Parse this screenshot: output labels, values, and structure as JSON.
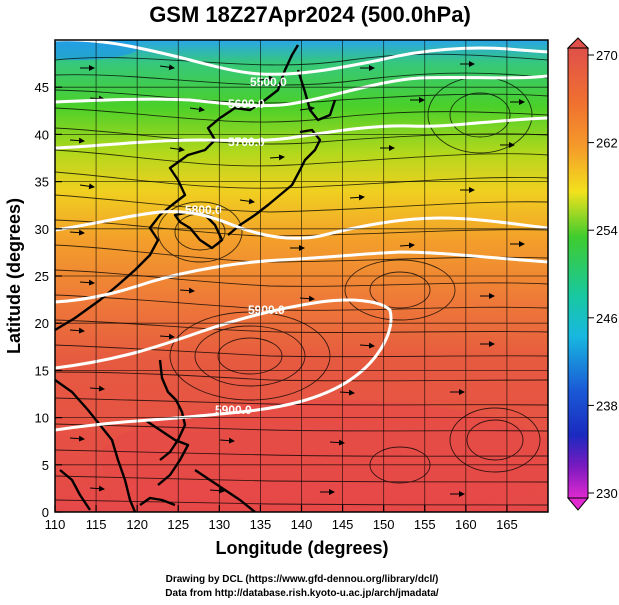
{
  "title": "GSM 18Z27Apr2024 (500.0hPa)",
  "x_axis": {
    "label": "Longitude (degrees)",
    "ticks": [
      "110",
      "115",
      "120",
      "125",
      "130",
      "135",
      "140",
      "145",
      "150",
      "155",
      "160",
      "165"
    ]
  },
  "y_axis": {
    "label": "Latitude  (degrees)",
    "ticks": [
      "0",
      "5",
      "10",
      "15",
      "20",
      "25",
      "30",
      "35",
      "40",
      "45"
    ]
  },
  "colorbar": {
    "labels": [
      "270",
      "262",
      "254",
      "246",
      "238",
      "230"
    ],
    "colors": [
      "#e0504a",
      "#f59a2a",
      "#f2e21c",
      "#3fcc2e",
      "#18c8c2",
      "#1a6ad6",
      "#1a2ac0",
      "#7a1ac0",
      "#e02ad0"
    ]
  },
  "contours": {
    "labels": [
      "5500.0",
      "5600.0",
      "5700.0",
      "5800.0",
      "5900.0",
      "5900.0"
    ]
  },
  "credits": {
    "line1": "Drawing by DCL (https://www.gfd-dennou.org/library/dcl/)",
    "line2": "Data from http://database.rish.kyoto-u.ac.jp/arch/jmadata/"
  }
}
